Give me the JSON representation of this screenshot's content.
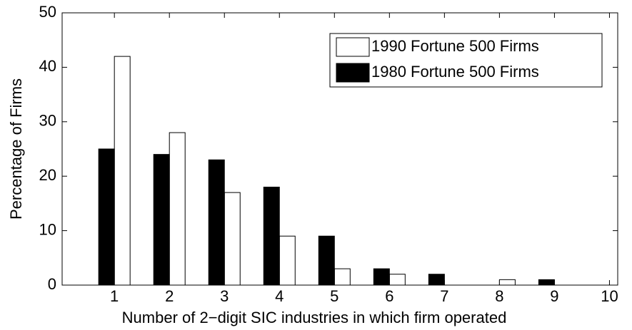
{
  "chart_data": {
    "type": "bar",
    "xlabel": "Number of 2−digit SIC industries in which firm operated",
    "ylabel": "Percentage of Firms",
    "x": [
      1,
      2,
      3,
      4,
      5,
      6,
      7,
      8,
      9
    ],
    "series": [
      {
        "name": "1990 Fortune 500 Firms",
        "color": "#ffffff",
        "values": [
          42,
          28,
          17,
          9,
          3,
          2,
          0,
          1,
          0
        ]
      },
      {
        "name": "1980 Fortune 500 Firms",
        "color": "#000000",
        "values": [
          25,
          24,
          23,
          18,
          9,
          3,
          2,
          0,
          1
        ]
      }
    ],
    "xlim": [
      0.05,
      10.15
    ],
    "xticks": [
      1,
      2,
      3,
      4,
      5,
      6,
      7,
      8,
      9,
      10
    ],
    "ylim": [
      0,
      50
    ],
    "yticks": [
      0,
      10,
      20,
      30,
      40,
      50
    ],
    "grid": false,
    "legend": "upper right"
  }
}
